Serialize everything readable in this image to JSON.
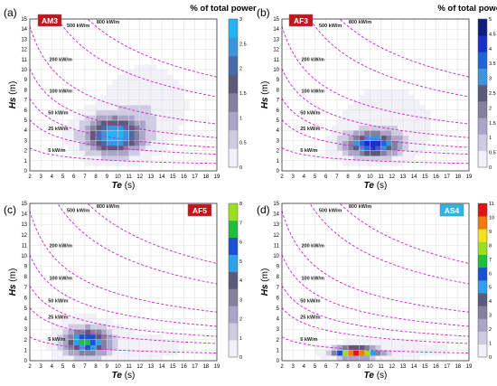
{
  "figure": {
    "colorbar_title": "% of total power",
    "xlabel_var": "Te",
    "xlabel_unit": "(s)",
    "ylabel_var": "Hs",
    "ylabel_unit": "(m)"
  },
  "chart_data": [
    {
      "type": "heatmap",
      "panel_letter": "(a)",
      "site": "AM3",
      "badge_color": "#c0161c",
      "xlim": [
        2,
        19
      ],
      "ylim": [
        0,
        15
      ],
      "xticks": [
        2,
        3,
        4,
        5,
        6,
        7,
        8,
        9,
        10,
        11,
        12,
        13,
        14,
        15,
        16,
        17,
        18,
        19
      ],
      "yticks": [
        0,
        1,
        2,
        3,
        4,
        5,
        6,
        7,
        8,
        9,
        10,
        11,
        12,
        13,
        14,
        15
      ],
      "colorbar_max": 3,
      "colorbar_ticks": [
        0,
        0.5,
        1,
        1.5,
        2,
        2.5,
        3
      ],
      "colorscale": [
        "#f2f0f8",
        "#cfcbe3",
        "#aaa5c8",
        "#85809e",
        "#5c5a78",
        "#4a6aa8",
        "#3a95dd",
        "#22b4f4"
      ],
      "power_contours": [
        {
          "label": "5 kW/m",
          "p": 5
        },
        {
          "label": "25 kW/m",
          "p": 25
        },
        {
          "label": "50 kW/m",
          "p": 50
        },
        {
          "label": "100 kW/m",
          "p": 100
        },
        {
          "label": "200 kW/m",
          "p": 200
        },
        {
          "label": "500 kW/m",
          "p": 500
        },
        {
          "label": "800 kW/m",
          "p": 800
        }
      ],
      "blobs": [
        {
          "te": 9.6,
          "hs": 3.5,
          "ste": 1.7,
          "shs": 1.2,
          "amp": 2.9,
          "cut": 0.08
        },
        {
          "te": 12.5,
          "hs": 6.5,
          "ste": 2.2,
          "shs": 2.3,
          "amp": 0.35,
          "cut": 0.08
        }
      ]
    },
    {
      "type": "heatmap",
      "panel_letter": "(b)",
      "site": "AF3",
      "badge_color": "#c0161c",
      "xlim": [
        2,
        19
      ],
      "ylim": [
        0,
        15
      ],
      "xticks": [
        2,
        3,
        4,
        5,
        6,
        7,
        8,
        9,
        10,
        11,
        12,
        13,
        14,
        15,
        16,
        17,
        18,
        19
      ],
      "yticks": [
        0,
        1,
        2,
        3,
        4,
        5,
        6,
        7,
        8,
        9,
        10,
        11,
        12,
        13,
        14,
        15
      ],
      "colorbar_max": 5,
      "colorbar_ticks": [
        0,
        0.5,
        1,
        1.5,
        2,
        2.5,
        3,
        3.5,
        4,
        4.5,
        5
      ],
      "colorscale": [
        "#f2f0f8",
        "#cfcbe3",
        "#aaa5c8",
        "#85809e",
        "#5c5a78",
        "#3a95dd",
        "#1f64d8",
        "#1a2fc8",
        "#101d80"
      ],
      "power_contours": [
        {
          "label": "5 kW/m",
          "p": 5
        },
        {
          "label": "25 kW/m",
          "p": 25
        },
        {
          "label": "50 kW/m",
          "p": 50
        },
        {
          "label": "100 kW/m",
          "p": 100
        },
        {
          "label": "200 kW/m",
          "p": 200
        },
        {
          "label": "500 kW/m",
          "p": 500
        },
        {
          "label": "800 kW/m",
          "p": 800
        }
      ],
      "blobs": [
        {
          "te": 10.2,
          "hs": 2.6,
          "ste": 1.6,
          "shs": 0.8,
          "amp": 4.2,
          "cut": 0.1
        },
        {
          "te": 11.5,
          "hs": 4.8,
          "ste": 2.3,
          "shs": 1.9,
          "amp": 0.45,
          "cut": 0.1
        }
      ]
    },
    {
      "type": "heatmap",
      "panel_letter": "(c)",
      "site": "AF5",
      "badge_color": "#c0161c",
      "xlim": [
        2,
        19
      ],
      "ylim": [
        0,
        15
      ],
      "xticks": [
        2,
        3,
        4,
        5,
        6,
        7,
        8,
        9,
        10,
        11,
        12,
        13,
        14,
        15,
        16,
        17,
        18,
        19
      ],
      "yticks": [
        0,
        1,
        2,
        3,
        4,
        5,
        6,
        7,
        8,
        9,
        10,
        11,
        12,
        13,
        14,
        15
      ],
      "colorbar_max": 8,
      "colorbar_ticks": [
        0,
        1,
        2,
        3,
        4,
        5,
        6,
        7,
        8
      ],
      "colorscale": [
        "#f2f0f8",
        "#cfcbe3",
        "#aaa5c8",
        "#85809e",
        "#5c5a78",
        "#2da0ee",
        "#1c4fd2",
        "#1fbe3c",
        "#9be020"
      ],
      "power_contours": [
        {
          "label": "5 kW/m",
          "p": 5
        },
        {
          "label": "25 kW/m",
          "p": 25
        },
        {
          "label": "50 kW/m",
          "p": 50
        },
        {
          "label": "100 kW/m",
          "p": 100
        },
        {
          "label": "200 kW/m",
          "p": 200
        },
        {
          "label": "500 kW/m",
          "p": 500
        },
        {
          "label": "800 kW/m",
          "p": 800
        }
      ],
      "blobs": [
        {
          "te": 7.2,
          "hs": 1.8,
          "ste": 1.3,
          "shs": 0.9,
          "amp": 6.5,
          "cut": 0.12
        },
        {
          "te": 11.0,
          "hs": 1.3,
          "ste": 3.2,
          "shs": 0.9,
          "amp": 0.35,
          "cut": 0.12
        }
      ]
    },
    {
      "type": "heatmap",
      "panel_letter": "(d)",
      "site": "AS4",
      "badge_color": "#29b6e8",
      "xlim": [
        2,
        19
      ],
      "ylim": [
        0,
        15
      ],
      "xticks": [
        2,
        3,
        4,
        5,
        6,
        7,
        8,
        9,
        10,
        11,
        12,
        13,
        14,
        15,
        16,
        17,
        18,
        19
      ],
      "yticks": [
        0,
        1,
        2,
        3,
        4,
        5,
        6,
        7,
        8,
        9,
        10,
        11,
        12,
        13,
        14,
        15
      ],
      "colorbar_max": 11,
      "colorbar_ticks": [
        0,
        1,
        2,
        3,
        4,
        5,
        6,
        7,
        8,
        9,
        10,
        11
      ],
      "colorscale": [
        "#f2f0f8",
        "#cfcbe3",
        "#aaa5c8",
        "#85809e",
        "#5c5a78",
        "#2da0ee",
        "#1c4fd2",
        "#1fbe3c",
        "#9be020",
        "#f5e21c",
        "#f07a12",
        "#e01414"
      ],
      "power_contours": [
        {
          "label": "5 kW/m",
          "p": 5
        },
        {
          "label": "25 kW/m",
          "p": 25
        },
        {
          "label": "50 kW/m",
          "p": 50
        },
        {
          "label": "100 kW/m",
          "p": 100
        },
        {
          "label": "200 kW/m",
          "p": 200
        },
        {
          "label": "500 kW/m",
          "p": 500
        },
        {
          "label": "800 kW/m",
          "p": 800
        }
      ],
      "blobs": [
        {
          "te": 8.7,
          "hs": 0.8,
          "ste": 1.3,
          "shs": 0.32,
          "amp": 10.5,
          "cut": 0.15
        },
        {
          "te": 12.5,
          "hs": 1.0,
          "ste": 3.4,
          "shs": 0.6,
          "amp": 0.4,
          "cut": 0.15
        }
      ]
    }
  ]
}
